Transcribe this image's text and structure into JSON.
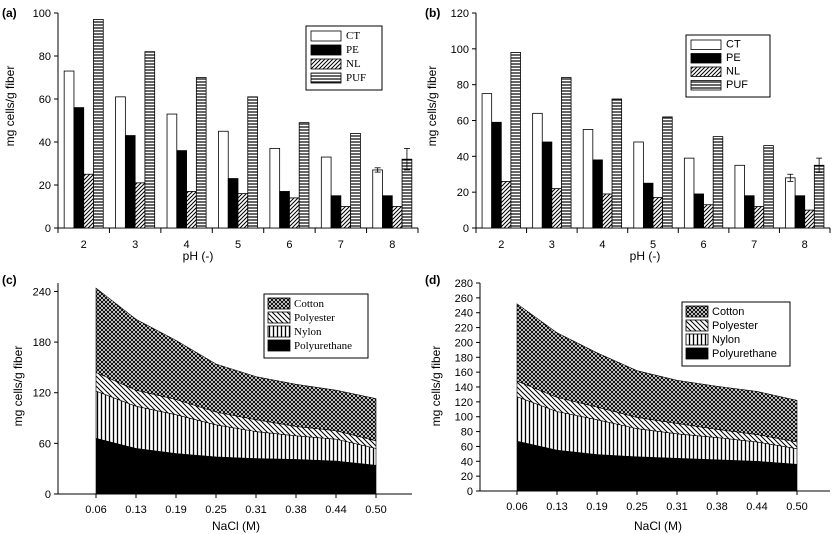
{
  "chart_data": [
    {
      "panel": "(a)",
      "type": "bar",
      "xlabel": "pH (-)",
      "ylabel": "mg cells/g fiber",
      "ylim": [
        0,
        100
      ],
      "yticks": [
        0,
        20,
        40,
        60,
        80,
        100
      ],
      "categories": [
        "2",
        "3",
        "4",
        "5",
        "6",
        "7",
        "8"
      ],
      "legend": "top-right",
      "series": [
        {
          "name": "CT",
          "values": [
            73,
            61,
            53,
            45,
            37,
            33,
            27
          ]
        },
        {
          "name": "PE",
          "values": [
            56,
            43,
            36,
            23,
            17,
            15,
            15
          ]
        },
        {
          "name": "NL",
          "values": [
            25,
            21,
            17,
            16,
            14,
            10,
            10
          ]
        },
        {
          "name": "PUF",
          "values": [
            97,
            82,
            70,
            61,
            49,
            44,
            32
          ]
        }
      ],
      "error_bars": [
        {
          "series": "CT",
          "category": "8",
          "value": 1
        },
        {
          "series": "PUF",
          "category": "8",
          "value": 5
        }
      ]
    },
    {
      "panel": "(b)",
      "type": "bar",
      "xlabel": "pH (-)",
      "ylabel": "mg cells/g fiber",
      "ylim": [
        0,
        120
      ],
      "yticks": [
        0,
        20,
        40,
        60,
        80,
        100,
        120
      ],
      "categories": [
        "2",
        "3",
        "4",
        "5",
        "6",
        "7",
        "8"
      ],
      "legend": "top-right",
      "series": [
        {
          "name": "CT",
          "values": [
            75,
            64,
            55,
            48,
            39,
            35,
            28
          ]
        },
        {
          "name": "PE",
          "values": [
            59,
            48,
            38,
            25,
            19,
            18,
            18
          ]
        },
        {
          "name": "NL",
          "values": [
            26,
            22,
            19,
            17,
            13,
            12,
            10
          ]
        },
        {
          "name": "PUF",
          "values": [
            98,
            84,
            72,
            62,
            51,
            46,
            35
          ]
        }
      ],
      "error_bars": [
        {
          "series": "CT",
          "category": "8",
          "value": 2
        },
        {
          "series": "PUF",
          "category": "8",
          "value": 4
        }
      ]
    },
    {
      "panel": "(c)",
      "type": "area",
      "stacked": true,
      "xlabel": "NaCl (M)",
      "ylabel": "mg cells/g fiber",
      "ylim": [
        0,
        250
      ],
      "yticks": [
        0,
        60,
        120,
        180,
        240
      ],
      "x": [
        "0.06",
        "0.13",
        "0.19",
        "0.25",
        "0.31",
        "0.38",
        "0.44",
        "0.50"
      ],
      "legend": "top-right",
      "series": [
        {
          "name": "Polyurethane",
          "values": [
            66,
            54,
            48,
            44,
            42,
            41,
            39,
            34
          ]
        },
        {
          "name": "Nylon",
          "values": [
            56,
            50,
            46,
            38,
            32,
            28,
            26,
            20
          ]
        },
        {
          "name": "Polyester",
          "values": [
            22,
            19,
            18,
            15,
            14,
            11,
            10,
            9
          ]
        },
        {
          "name": "Cotton",
          "values": [
            100,
            84,
            70,
            57,
            51,
            50,
            48,
            50
          ]
        }
      ]
    },
    {
      "panel": "(d)",
      "type": "area",
      "stacked": true,
      "xlabel": "NaCl (M)",
      "ylabel": "mg cells/g fiber",
      "ylim": [
        0,
        280
      ],
      "yticks": [
        0,
        20,
        40,
        60,
        80,
        100,
        120,
        140,
        160,
        180,
        200,
        220,
        240,
        260,
        280
      ],
      "x": [
        "0.06",
        "0.13",
        "0.19",
        "0.25",
        "0.31",
        "0.38",
        "0.44",
        "0.50"
      ],
      "legend": "top-right",
      "series": [
        {
          "name": "Polyurethane",
          "values": [
            67,
            55,
            49,
            46,
            44,
            42,
            40,
            36
          ]
        },
        {
          "name": "Nylon",
          "values": [
            60,
            52,
            47,
            38,
            33,
            30,
            26,
            21
          ]
        },
        {
          "name": "Polyester",
          "values": [
            21,
            19,
            17,
            15,
            14,
            11,
            10,
            9
          ]
        },
        {
          "name": "Cotton",
          "values": [
            104,
            87,
            73,
            63,
            58,
            58,
            58,
            56
          ]
        }
      ]
    }
  ]
}
